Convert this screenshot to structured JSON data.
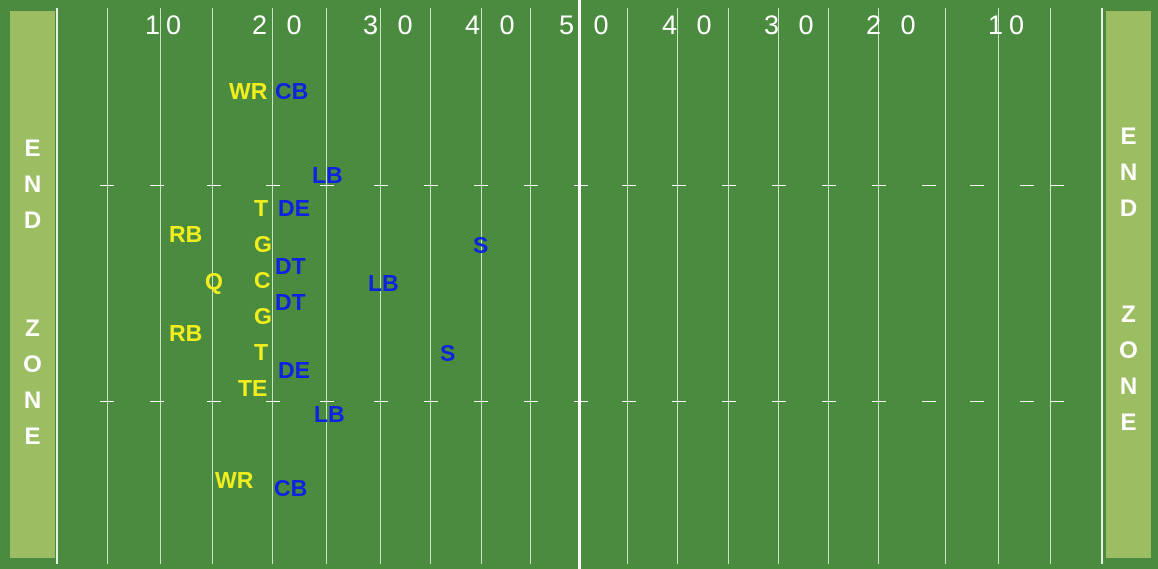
{
  "endzones": {
    "left": [
      "E",
      "N",
      "D",
      "",
      "Z",
      "O",
      "N",
      "E"
    ],
    "right": [
      "E",
      "N",
      "D",
      "",
      "Z",
      "O",
      "N",
      "E"
    ]
  },
  "yard_numbers": [
    "10",
    "2 0",
    "3 0",
    "4 0",
    "5 0",
    "4 0",
    "3 0",
    "2 0",
    "10"
  ],
  "offense": [
    "WR",
    "T",
    "RB",
    "G",
    "Q",
    "C",
    "G",
    "RB",
    "T",
    "TE",
    "WR"
  ],
  "defense": [
    "CB",
    "LB",
    "DE",
    "S",
    "DT",
    "LB",
    "DT",
    "S",
    "DE",
    "LB",
    "CB"
  ],
  "colors": {
    "field": "#4a8b3f",
    "endzone": "#9dbd62",
    "offense": "#f2ee1e",
    "defense": "#0d23e0",
    "lines": "#ffffff"
  }
}
